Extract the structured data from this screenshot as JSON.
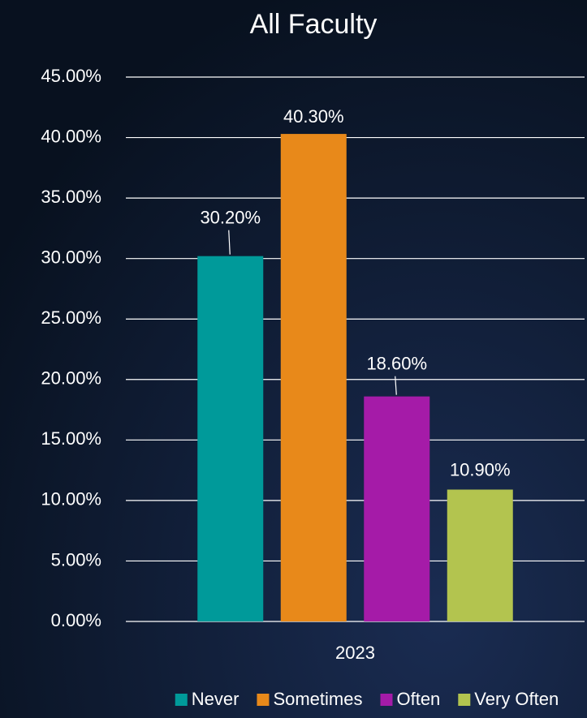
{
  "chart_data": {
    "type": "bar",
    "title": "All Faculty",
    "categories": [
      "2023"
    ],
    "series": [
      {
        "name": "Never",
        "color": "#009a9a",
        "values": [
          30.2
        ],
        "value_labels": [
          "30.20%"
        ]
      },
      {
        "name": "Sometimes",
        "color": "#e8891a",
        "values": [
          40.3
        ],
        "value_labels": [
          "40.30%"
        ]
      },
      {
        "name": "Often",
        "color": "#a51ba8",
        "values": [
          18.6
        ],
        "value_labels": [
          "18.60%"
        ]
      },
      {
        "name": "Very Often",
        "color": "#b3c44f",
        "values": [
          10.9
        ],
        "value_labels": [
          "10.90%"
        ]
      }
    ],
    "ylim": [
      0,
      45
    ],
    "yticks": [
      {
        "value": 0,
        "label": "0.00%"
      },
      {
        "value": 5,
        "label": "5.00%"
      },
      {
        "value": 10,
        "label": "10.00%"
      },
      {
        "value": 15,
        "label": "15.00%"
      },
      {
        "value": 20,
        "label": "20.00%"
      },
      {
        "value": 25,
        "label": "25.00%"
      },
      {
        "value": 30,
        "label": "30.00%"
      },
      {
        "value": 35,
        "label": "35.00%"
      },
      {
        "value": 40,
        "label": "40.00%"
      },
      {
        "value": 45,
        "label": "45.00%"
      }
    ],
    "grid": true,
    "legend": "bottom"
  }
}
